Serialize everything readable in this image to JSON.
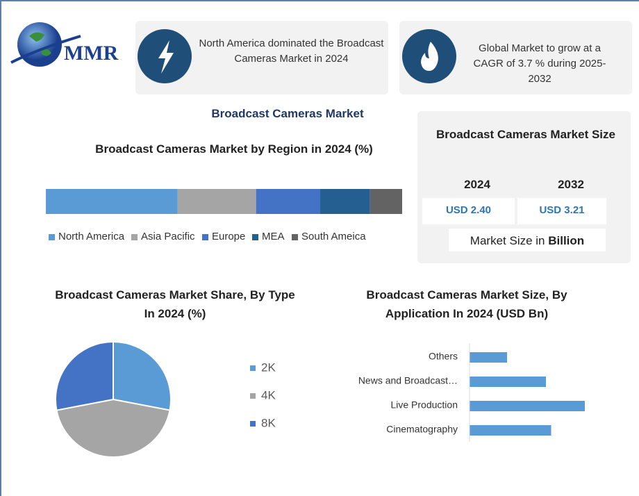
{
  "logo": {
    "text": "MMR"
  },
  "header": {
    "left": "North America dominated the Broadcast Cameras Market in 2024",
    "right": "Global Market to grow at a CAGR of 3.7 % during 2025-2032"
  },
  "main_title": "Broadcast Cameras Market",
  "market_size": {
    "title": "Broadcast Cameras Market Size",
    "years": [
      "2024",
      "2032"
    ],
    "values": [
      "USD 2.40",
      "USD 3.21"
    ],
    "note": "Market Size in ",
    "note_unit": "Billion"
  },
  "chart_data": [
    {
      "type": "stacked_bar",
      "title": "Broadcast Cameras Market by Region in 2024 (%)",
      "series": [
        {
          "name": "North America",
          "color": "#5b9bd5",
          "values": [
            37
          ]
        },
        {
          "name": "Asia Pacific",
          "color": "#a5a5a5",
          "values": [
            22
          ]
        },
        {
          "name": "Europe",
          "color": "#4472c4",
          "values": [
            18
          ]
        },
        {
          "name": "MEA",
          "color": "#255e91",
          "values": [
            14
          ]
        },
        {
          "name": "South Ameica",
          "color": "#636363",
          "values": [
            9
          ]
        }
      ]
    },
    {
      "type": "pie",
      "title": "Broadcast Cameras Market Share, By Type In 2024 (%)",
      "categories": [
        "2K",
        "4K",
        "8K"
      ],
      "values": [
        28,
        44,
        28
      ],
      "colors": [
        "#5b9bd5",
        "#a5a5a5",
        "#4472c4"
      ]
    },
    {
      "type": "hbar",
      "title": "Broadcast Cameras Market Size, By Application In 2024 (USD Bn)",
      "categories": [
        "Others",
        "News and Broadcast…",
        "Live Production",
        "Cinematography"
      ],
      "values": [
        0.29,
        0.59,
        0.89,
        0.63
      ],
      "color": "#5b9bd5"
    }
  ]
}
